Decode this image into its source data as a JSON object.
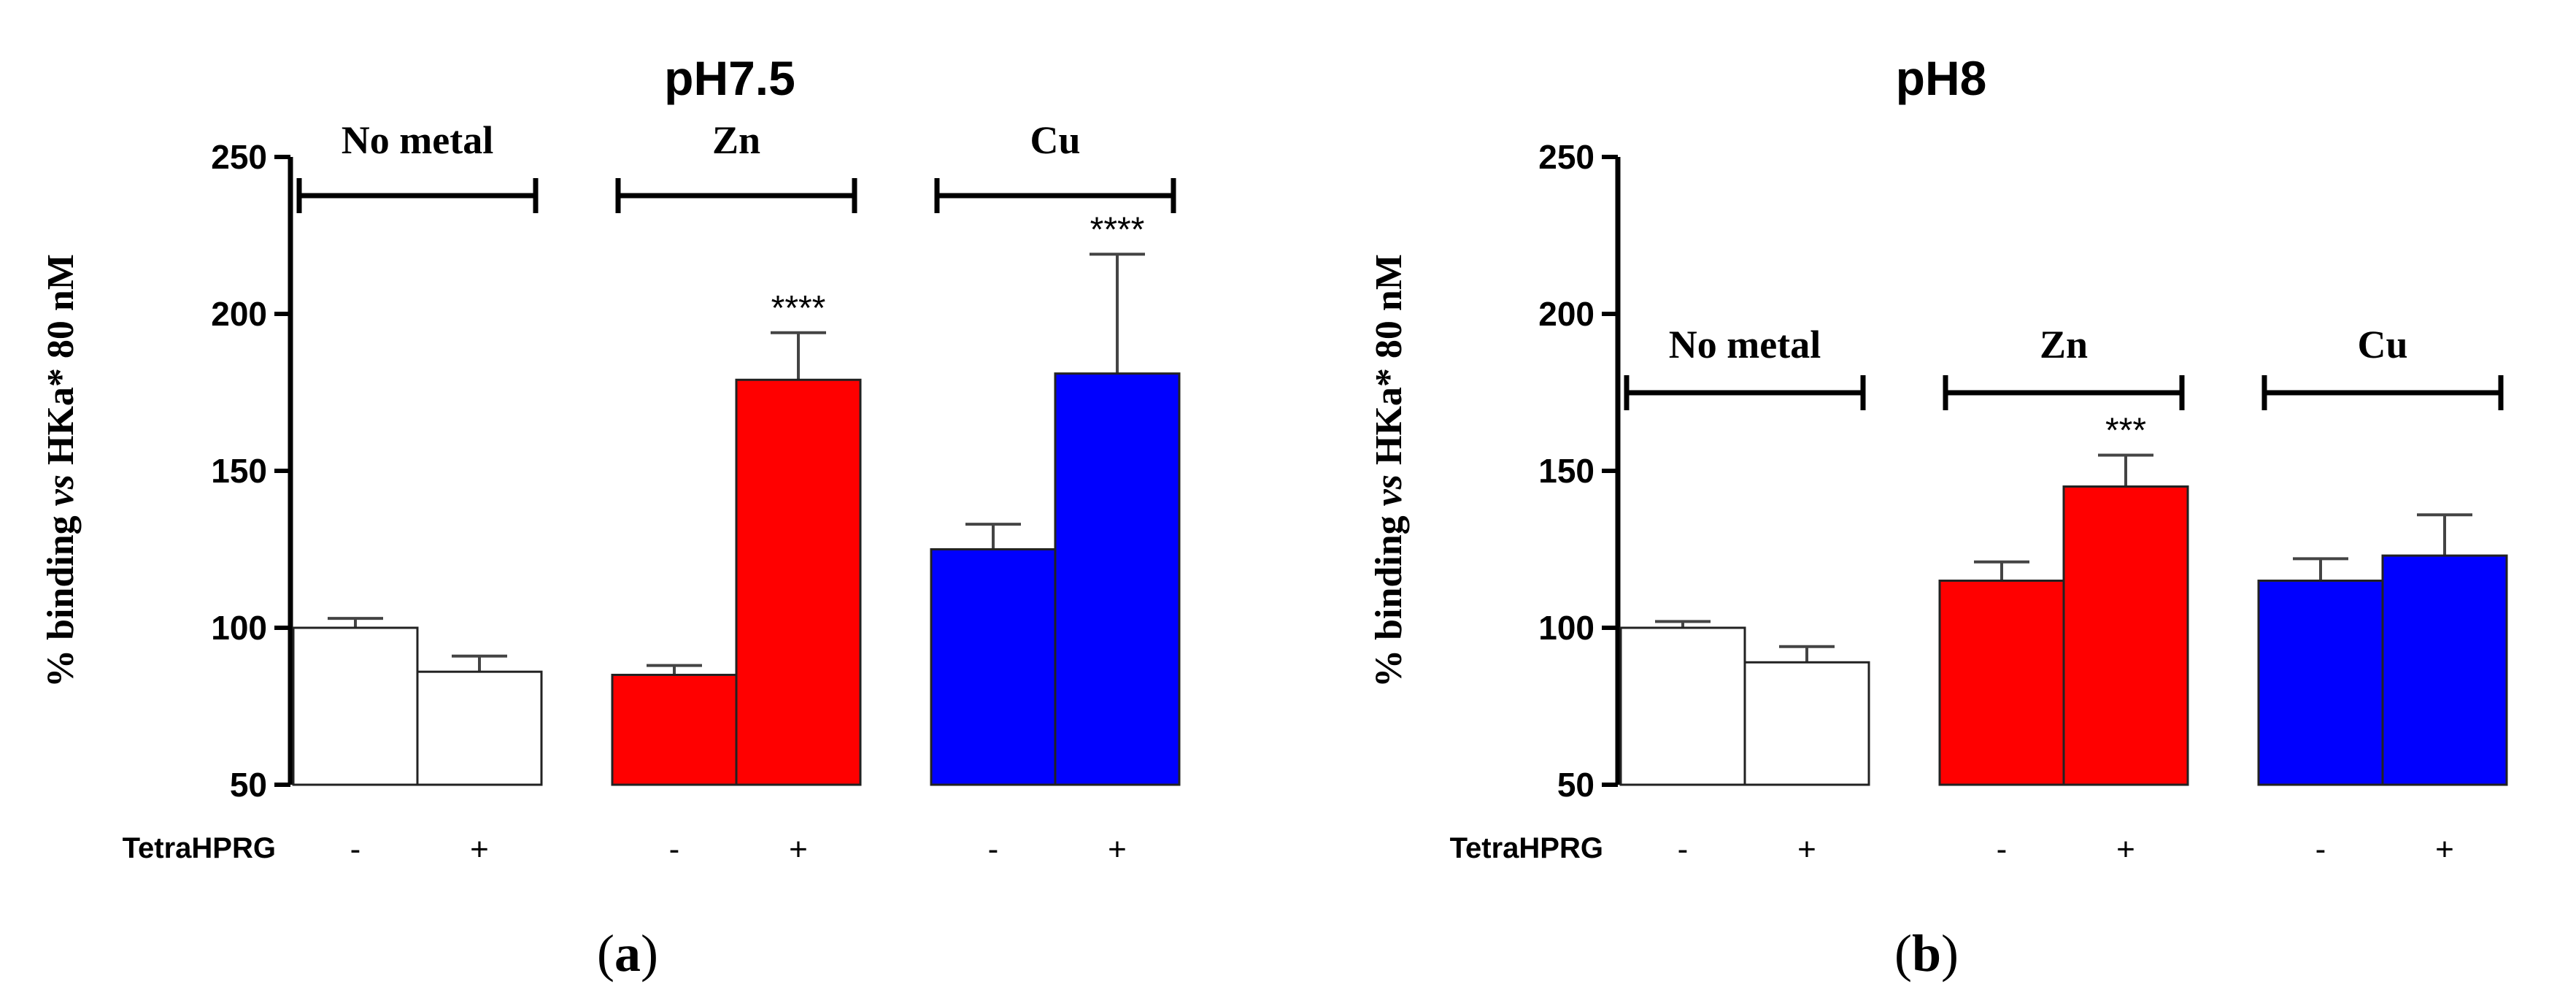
{
  "chart_data": [
    {
      "type": "bar",
      "title": "pH7.5",
      "panel_label": "a",
      "ylabel": "% binding vs HKa* 80 nM",
      "ylim": [
        50,
        250
      ],
      "yticks": [
        50,
        100,
        150,
        200,
        250
      ],
      "x_condition_label": "TetraHPRG",
      "groups": [
        {
          "name": "No metal",
          "color": "#ffffff",
          "bars": [
            {
              "sign": "-",
              "value": 100,
              "error": 3,
              "sig": ""
            },
            {
              "sign": "+",
              "value": 86,
              "error": 5,
              "sig": ""
            }
          ]
        },
        {
          "name": "Zn",
          "color": "#ff0000",
          "bars": [
            {
              "sign": "-",
              "value": 85,
              "error": 3,
              "sig": ""
            },
            {
              "sign": "+",
              "value": 179,
              "error": 15,
              "sig": "****"
            }
          ]
        },
        {
          "name": "Cu",
          "color": "#0000ff",
          "bars": [
            {
              "sign": "-",
              "value": 125,
              "error": 8,
              "sig": ""
            },
            {
              "sign": "+",
              "value": 181,
              "error": 38,
              "sig": "****"
            }
          ]
        }
      ]
    },
    {
      "type": "bar",
      "title": "pH8",
      "panel_label": "b",
      "ylabel": "% binding vs HKa* 80 nM",
      "ylim": [
        50,
        250
      ],
      "yticks": [
        50,
        100,
        150,
        200,
        250
      ],
      "x_condition_label": "TetraHPRG",
      "groups": [
        {
          "name": "No metal",
          "color": "#ffffff",
          "bars": [
            {
              "sign": "-",
              "value": 100,
              "error": 2,
              "sig": ""
            },
            {
              "sign": "+",
              "value": 89,
              "error": 5,
              "sig": ""
            }
          ]
        },
        {
          "name": "Zn",
          "color": "#ff0000",
          "bars": [
            {
              "sign": "-",
              "value": 115,
              "error": 6,
              "sig": ""
            },
            {
              "sign": "+",
              "value": 145,
              "error": 10,
              "sig": "***"
            }
          ]
        },
        {
          "name": "Cu",
          "color": "#0000ff",
          "bars": [
            {
              "sign": "-",
              "value": 115,
              "error": 7,
              "sig": ""
            },
            {
              "sign": "+",
              "value": 123,
              "error": 13,
              "sig": ""
            }
          ]
        }
      ]
    }
  ]
}
